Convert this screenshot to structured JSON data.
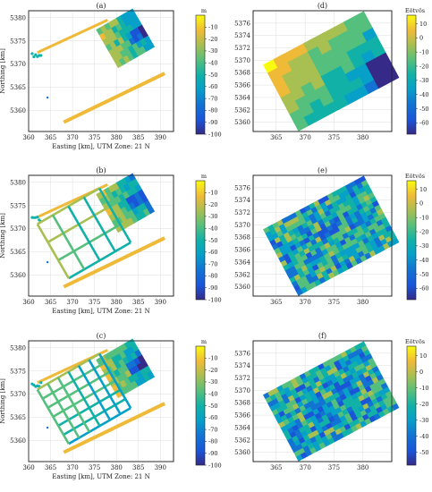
{
  "chart_data": [
    {
      "type": "map",
      "panel_label": "(a)",
      "xlabel": "Easting [km], UTM Zone: 21 N",
      "ylabel": "Northing [km]",
      "x_ticks": [
        "360",
        "365",
        "370",
        "375",
        "380",
        "385",
        "390"
      ],
      "y_ticks": [
        "5360",
        "5365",
        "5370",
        "5375",
        "5380"
      ],
      "xlim": [
        360,
        393
      ],
      "ylim": [
        5355.5,
        5381.5
      ],
      "colorbar": {
        "unit": "m",
        "ticks": [
          "-10",
          "-20",
          "-30",
          "-40",
          "-50",
          "-60",
          "-70",
          "-80",
          "-90",
          "-100"
        ],
        "range": [
          -100,
          0
        ]
      },
      "grid": true
    },
    {
      "type": "map",
      "panel_label": "(d)",
      "x_ticks": [
        "365",
        "370",
        "375",
        "380"
      ],
      "y_ticks": [
        "5360",
        "5362",
        "5364",
        "5366",
        "5368",
        "5370",
        "5372",
        "5374",
        "5376"
      ],
      "xlim": [
        361,
        385
      ],
      "ylim": [
        5358.5,
        5378
      ],
      "colorbar": {
        "unit": "Eötvös",
        "ticks": [
          "10",
          "0",
          "-10",
          "-20",
          "-30",
          "-40",
          "-50",
          "-60"
        ],
        "range": [
          -68,
          16
        ]
      },
      "grid": true
    },
    {
      "type": "map",
      "panel_label": "(b)",
      "xlabel": "Easting [km], UTM Zone: 21 N",
      "ylabel": "Northing [km]",
      "x_ticks": [
        "360",
        "365",
        "370",
        "375",
        "380",
        "385",
        "390"
      ],
      "y_ticks": [
        "5360",
        "5365",
        "5370",
        "5375",
        "5380"
      ],
      "xlim": [
        360,
        393
      ],
      "ylim": [
        5355.5,
        5381.5
      ],
      "colorbar": {
        "unit": "m",
        "ticks": [
          "-10",
          "-20",
          "-30",
          "-40",
          "-50",
          "-60",
          "-70",
          "-80",
          "-90",
          "-100"
        ],
        "range": [
          -100,
          0
        ]
      },
      "grid": true
    },
    {
      "type": "map",
      "panel_label": "(e)",
      "x_ticks": [
        "365",
        "370",
        "375",
        "380"
      ],
      "y_ticks": [
        "5360",
        "5362",
        "5364",
        "5366",
        "5368",
        "5370",
        "5372",
        "5374",
        "5376"
      ],
      "xlim": [
        361,
        385
      ],
      "ylim": [
        5358.5,
        5378
      ],
      "colorbar": {
        "unit": "Eötvös",
        "ticks": [
          "10",
          "0",
          "-10",
          "-20",
          "-30",
          "-40",
          "-50",
          "-60"
        ],
        "range": [
          -68,
          16
        ]
      },
      "grid": true
    },
    {
      "type": "map",
      "panel_label": "(c)",
      "xlabel": "Easting [km], UTM Zone: 21 N",
      "ylabel": "Northing [km]",
      "x_ticks": [
        "360",
        "365",
        "370",
        "375",
        "380",
        "385",
        "390"
      ],
      "y_ticks": [
        "5360",
        "5365",
        "5370",
        "5375",
        "5380"
      ],
      "xlim": [
        360,
        393
      ],
      "ylim": [
        5355.5,
        5381.5
      ],
      "colorbar": {
        "unit": "m",
        "ticks": [
          "-10",
          "-20",
          "-30",
          "-40",
          "-50",
          "-60",
          "-70",
          "-80",
          "-90",
          "-100"
        ],
        "range": [
          -100,
          0
        ]
      },
      "grid": true
    },
    {
      "type": "map",
      "panel_label": "(f)",
      "x_ticks": [
        "365",
        "370",
        "375",
        "380"
      ],
      "y_ticks": [
        "5360",
        "5362",
        "5364",
        "5366",
        "5368",
        "5370",
        "5372",
        "5374",
        "5376"
      ],
      "xlim": [
        361,
        385
      ],
      "ylim": [
        5358.5,
        5378
      ],
      "colorbar": {
        "unit": "Eötvös",
        "ticks": [
          "10",
          "0",
          "-10",
          "-20",
          "-30",
          "-40",
          "-50"
        ],
        "range": [
          -58,
          16
        ]
      },
      "grid": true
    }
  ]
}
